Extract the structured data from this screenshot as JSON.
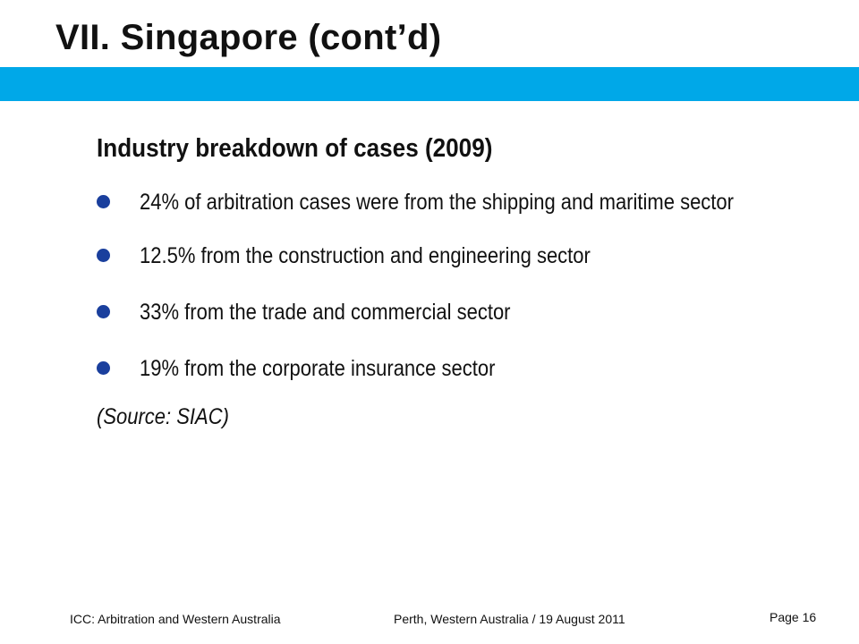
{
  "slide": {
    "title": "VII.  Singapore (cont’d)",
    "subheading": "Industry breakdown of cases (2009)",
    "bullets": [
      "24% of arbitration cases were from the shipping and maritime sector",
      "12.5% from the construction and engineering sector",
      "33% from the trade and commercial sector",
      "19% from the corporate insurance sector"
    ],
    "source_note": "(Source: SIAC)"
  },
  "footer": {
    "left": "ICC: Arbitration and Western Australia",
    "center": "Perth, Western Australia / 19 August 2011",
    "right": "Page 16"
  },
  "colors": {
    "title_band": "#00a8e8",
    "bullet": "#1a3f9d",
    "text": "#111111",
    "background": "#ffffff"
  }
}
